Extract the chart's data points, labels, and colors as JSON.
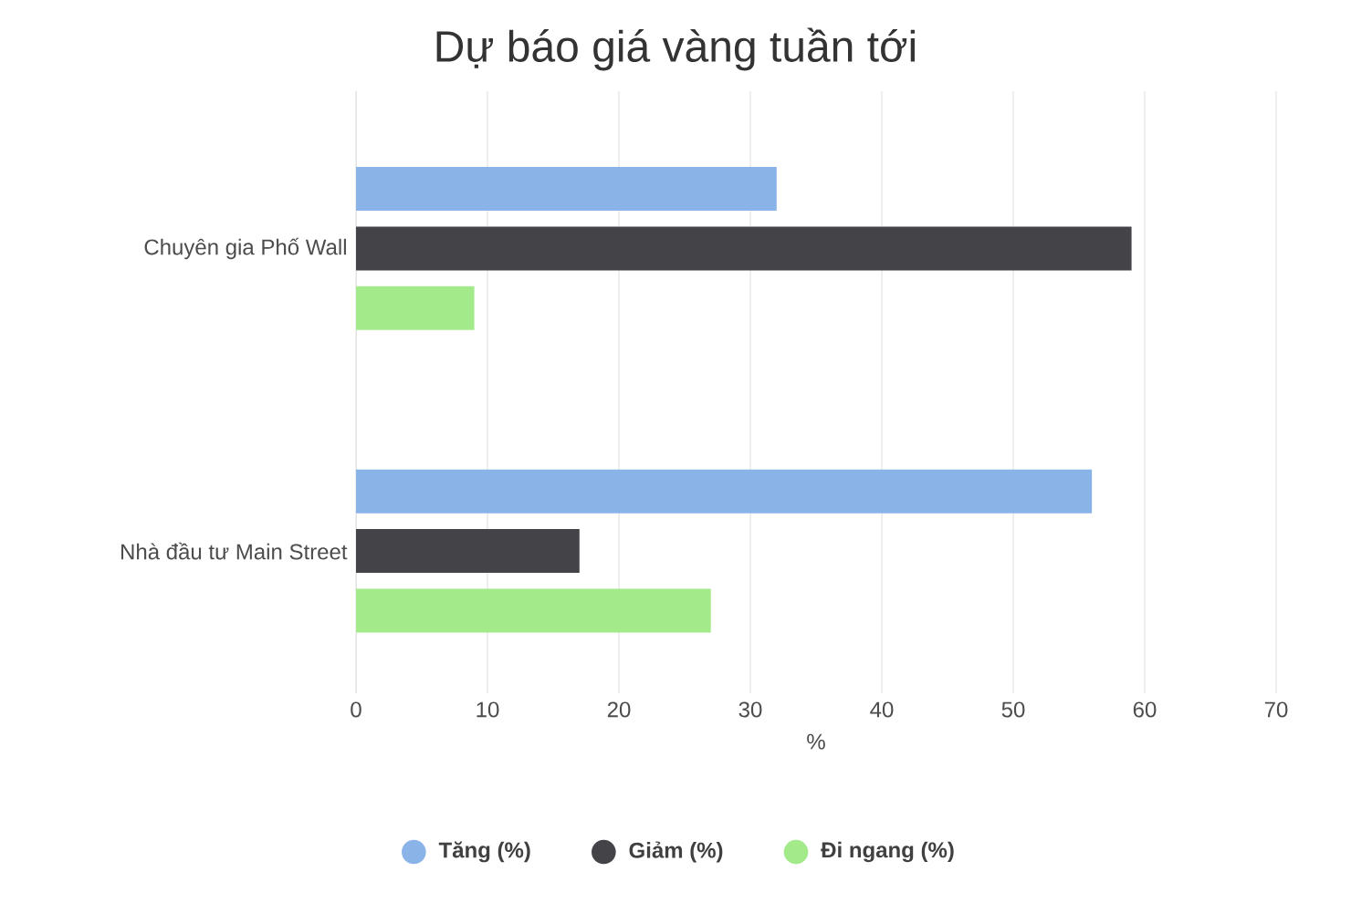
{
  "chart_data": {
    "type": "bar",
    "orientation": "horizontal",
    "title": "Dự báo giá vàng tuần tới",
    "xlabel": "%",
    "categories": [
      "Chuyên gia Phố Wall",
      "Nhà đầu tư Main Street"
    ],
    "series": [
      {
        "name": "Tăng (%)",
        "color": "#8ab4e8",
        "values": [
          32,
          56
        ]
      },
      {
        "name": "Giảm (%)",
        "color": "#434348",
        "values": [
          59,
          17
        ]
      },
      {
        "name": "Đi ngang (%)",
        "color": "#a3ea8a",
        "values": [
          9,
          27
        ]
      }
    ],
    "xlim": [
      0,
      70
    ],
    "xticks": [
      0,
      10,
      20,
      30,
      40,
      50,
      60,
      70
    ],
    "grid": "x",
    "legend": "bottom"
  }
}
